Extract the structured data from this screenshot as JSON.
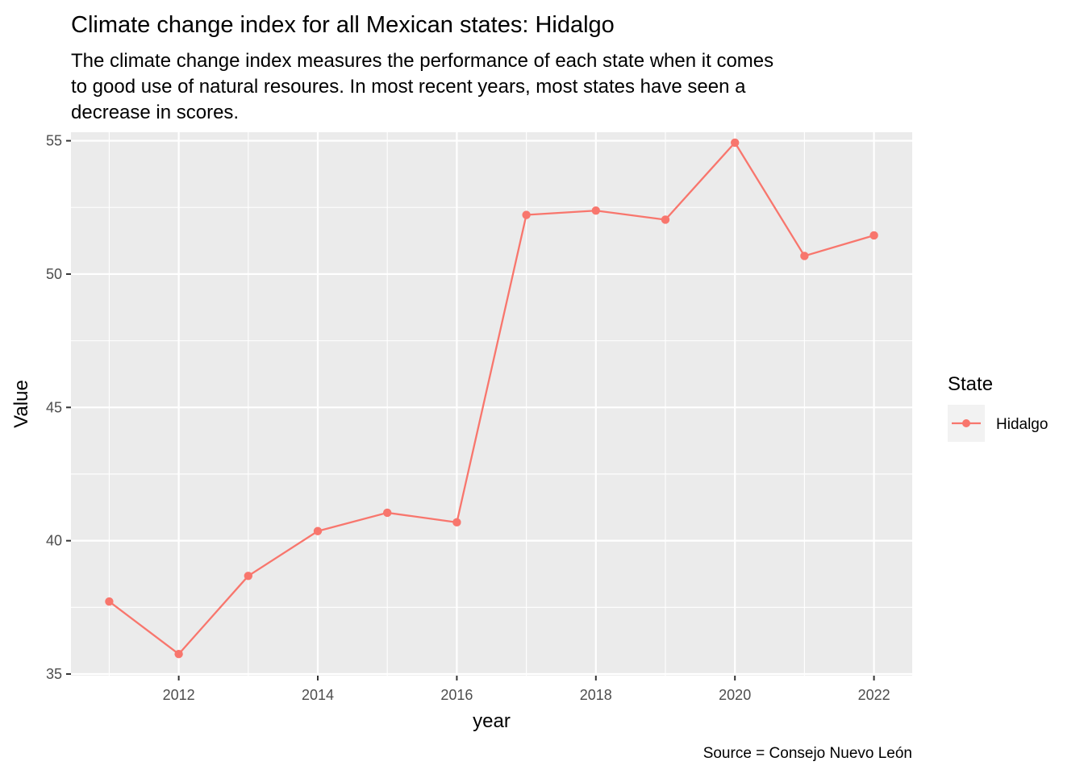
{
  "chart_data": {
    "type": "line",
    "title": "Climate change index for all Mexican states: Hidalgo",
    "subtitle_lines": [
      "The climate change index measures the performance of each state when it comes",
      "to good use of natural resoures. In most recent years, most states have seen a",
      "decrease in scores."
    ],
    "xlabel": "year",
    "ylabel": "Value",
    "caption": "Source = Consejo Nuevo León",
    "x_ticks": [
      2012,
      2014,
      2016,
      2018,
      2020,
      2022
    ],
    "y_ticks": [
      35,
      40,
      45,
      50,
      55
    ],
    "xlim": [
      2010.45,
      2022.55
    ],
    "ylim": [
      34.94,
      55.32
    ],
    "grid": true,
    "legend": {
      "title": "State",
      "position": "right"
    },
    "series": [
      {
        "name": "Hidalgo",
        "color": "#F8766D",
        "x": [
          2011,
          2012,
          2013,
          2014,
          2015,
          2016,
          2017,
          2018,
          2019,
          2020,
          2021,
          2022
        ],
        "y": [
          37.72,
          35.75,
          38.68,
          40.36,
          41.05,
          40.69,
          52.22,
          52.38,
          52.04,
          54.93,
          50.68,
          51.45
        ]
      }
    ]
  }
}
